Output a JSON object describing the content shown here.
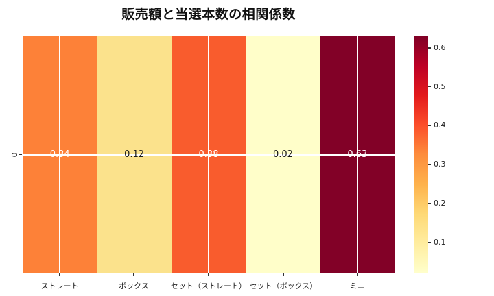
{
  "title": "販売額と当選本数の相関係数",
  "chart_data": {
    "type": "heatmap",
    "title": "販売額と当選本数の相関係数",
    "categories": [
      "ストレート",
      "ボックス",
      "セット（ストレート）",
      "セット（ボックス）",
      "ミニ"
    ],
    "row_labels": [
      "0"
    ],
    "values": [
      0.34,
      0.12,
      0.38,
      0.02,
      0.63
    ],
    "value_labels": [
      "0.34",
      "0.12",
      "0.38",
      "0.02",
      "0.63"
    ],
    "cell_colors": [
      "#fd8138",
      "#fbe28c",
      "#f95c2d",
      "#fffec9",
      "#820127"
    ],
    "value_text_colors": [
      "#ffffff",
      "#1a1a1a",
      "#ffffff",
      "#1a1a1a",
      "#ffffff"
    ],
    "colormap": "YlOrRd",
    "colormap_stops": [
      "#ffffcc",
      "#ffeda0",
      "#fed976",
      "#feb24c",
      "#fd8d3c",
      "#fc4e2a",
      "#e31a1c",
      "#bd0026",
      "#800026"
    ],
    "vmin": 0.02,
    "vmax": 0.63,
    "colorbar_ticks": [
      0.1,
      0.2,
      0.3,
      0.4,
      0.5,
      0.6
    ],
    "colorbar_tick_labels": [
      "0.1",
      "0.2",
      "0.3",
      "0.4",
      "0.5",
      "0.6"
    ],
    "grid": true,
    "gridline_color": "#ffffff",
    "legend_position": "right-colorbar"
  }
}
